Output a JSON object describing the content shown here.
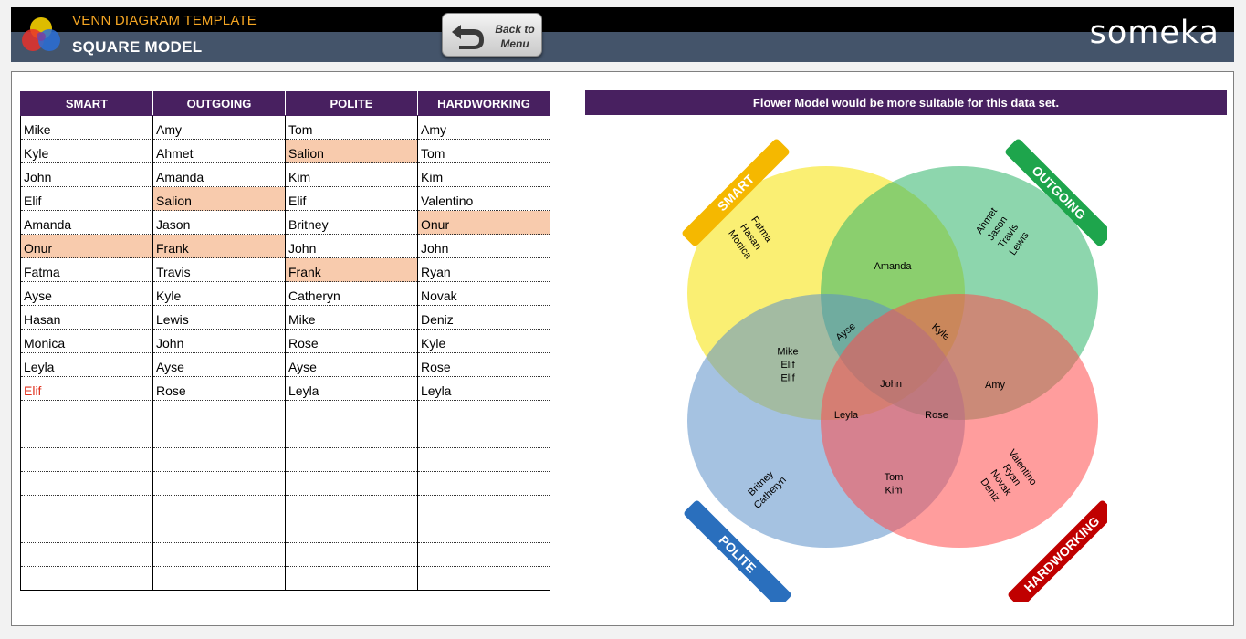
{
  "header": {
    "title": "VENN DIAGRAM TEMPLATE",
    "subtitle": "SQUARE MODEL",
    "back_button": "Back to Menu",
    "brand": "someka"
  },
  "table": {
    "columns": [
      "SMART",
      "OUTGOING",
      "POLITE",
      "HARDWORKING"
    ],
    "rows": [
      [
        "Mike",
        "Amy",
        "Tom",
        "Amy"
      ],
      [
        "Kyle",
        "Ahmet",
        "Salion",
        "Tom"
      ],
      [
        "John",
        "Amanda",
        "Kim",
        "Kim"
      ],
      [
        "Elif",
        "Salion",
        "Elif",
        "Valentino"
      ],
      [
        "Amanda",
        "Jason",
        "Britney",
        "Onur"
      ],
      [
        "Onur",
        "Frank",
        "John",
        "John"
      ],
      [
        "Fatma",
        "Travis",
        "Frank",
        "Ryan"
      ],
      [
        "Ayse",
        "Kyle",
        "Catheryn",
        "Novak"
      ],
      [
        "Hasan",
        "Lewis",
        "Mike",
        "Deniz"
      ],
      [
        "Monica",
        "John",
        "Rose",
        "Kyle"
      ],
      [
        "Leyla",
        "Ayse",
        "Ayse",
        "Rose"
      ],
      [
        "Elif",
        "Rose",
        "Leyla",
        "Leyla"
      ],
      [
        "",
        "",
        "",
        ""
      ],
      [
        "",
        "",
        "",
        ""
      ],
      [
        "",
        "",
        "",
        ""
      ],
      [
        "",
        "",
        "",
        ""
      ],
      [
        "",
        "",
        "",
        ""
      ],
      [
        "",
        "",
        "",
        ""
      ],
      [
        "",
        "",
        "",
        ""
      ],
      [
        "",
        "",
        "",
        ""
      ]
    ],
    "highlighted": [
      [
        1,
        2
      ],
      [
        3,
        1
      ],
      [
        4,
        3
      ],
      [
        5,
        0
      ],
      [
        5,
        1
      ],
      [
        6,
        2
      ]
    ],
    "red_text": [
      [
        11,
        0
      ]
    ]
  },
  "diagram": {
    "notice": "Flower Model would be more suitable for this data set.",
    "sets": {
      "smart": {
        "label": "SMART",
        "color": "#f5e200",
        "tag_color": "#f5b800"
      },
      "outgoing": {
        "label": "OUTGOING",
        "color": "#2fb56a",
        "tag_color": "#1ea54c"
      },
      "polite": {
        "label": "POLITE",
        "color": "#5b8fc9",
        "tag_color": "#2a6fbd"
      },
      "hardworking": {
        "label": "HARDWORKING",
        "color": "#ff4d4d",
        "tag_color": "#c00000"
      }
    },
    "regions": {
      "smart_only": [
        "Fatma",
        "Hasan",
        "Monica"
      ],
      "outgoing_only": [
        "Ahmet",
        "Jason",
        "Travis",
        "Lewis"
      ],
      "polite_only": [
        "Britney",
        "Catheryn"
      ],
      "hardworking_only": [
        "Valentino",
        "Ryan",
        "Novak",
        "Deniz"
      ],
      "smart_outgoing": [
        "Amanda"
      ],
      "smart_polite": [
        "Mike",
        "Elif",
        "Elif"
      ],
      "outgoing_hardworking": [
        "Amy"
      ],
      "polite_hardworking": [
        "Tom",
        "Kim"
      ],
      "smart_outgoing_polite": [
        "Ayse"
      ],
      "smart_outgoing_hardworking": [
        "Kyle"
      ],
      "smart_polite_hardworking": [
        "Leyla"
      ],
      "outgoing_polite_hardworking": [
        "Rose"
      ],
      "all": [
        "John"
      ]
    }
  }
}
